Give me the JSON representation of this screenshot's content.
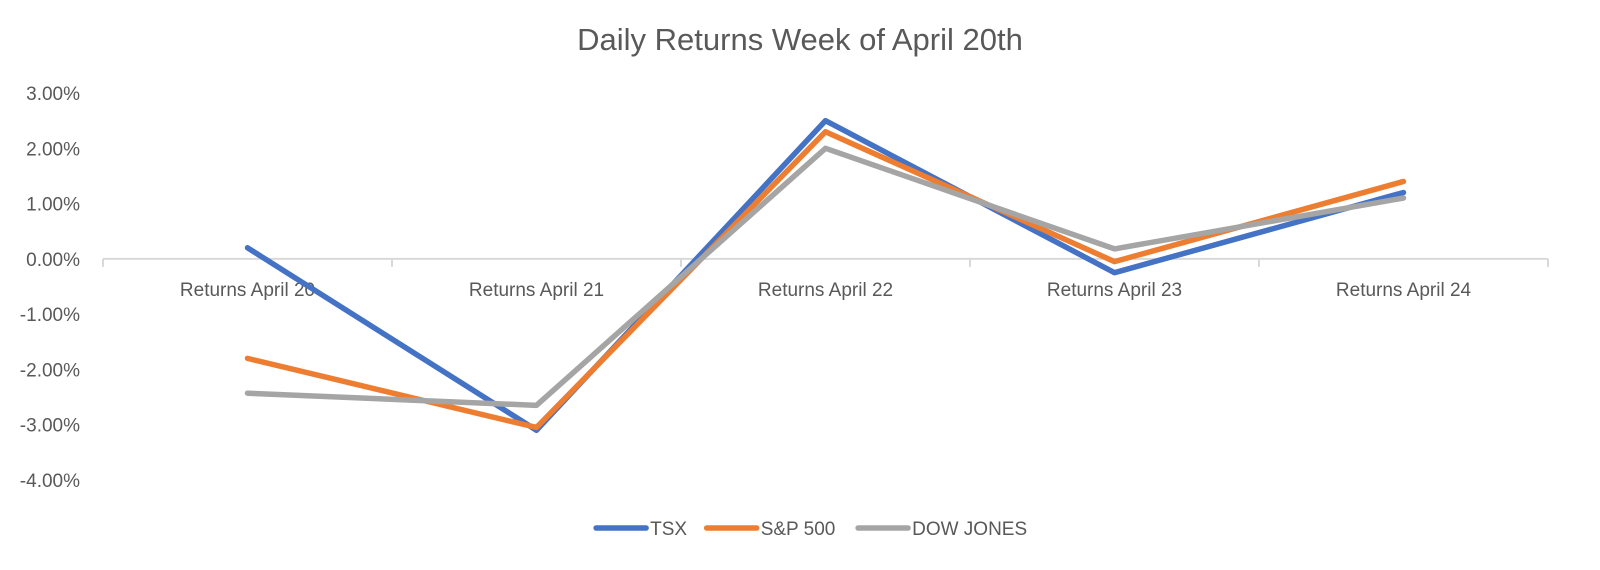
{
  "chart_data": {
    "type": "line",
    "title": "Daily Returns Week of April 20th",
    "xlabel": "",
    "ylabel": "",
    "categories": [
      "Returns April 20",
      "Returns April 21",
      "Returns April 22",
      "Returns April 23",
      "Returns April 24"
    ],
    "ylim": [
      -4.0,
      3.0
    ],
    "yticks": [
      3.0,
      2.0,
      1.0,
      0.0,
      -1.0,
      -2.0,
      -3.0,
      -4.0
    ],
    "ytick_labels": [
      "3.00%",
      "2.00%",
      "1.00%",
      "0.00%",
      "-1.00%",
      "-2.00%",
      "-3.00%",
      "-4.00%"
    ],
    "grid": false,
    "legend_position": "bottom",
    "series": [
      {
        "name": "TSX",
        "color": "#4472C4",
        "values": [
          0.2,
          -3.1,
          2.5,
          -0.25,
          1.2
        ]
      },
      {
        "name": "S&P 500",
        "color": "#ED7D31",
        "values": [
          -1.8,
          -3.05,
          2.3,
          -0.05,
          1.4
        ]
      },
      {
        "name": "DOW JONES",
        "color": "#A5A5A5",
        "values": [
          -2.43,
          -2.65,
          2.0,
          0.18,
          1.1
        ]
      }
    ]
  }
}
